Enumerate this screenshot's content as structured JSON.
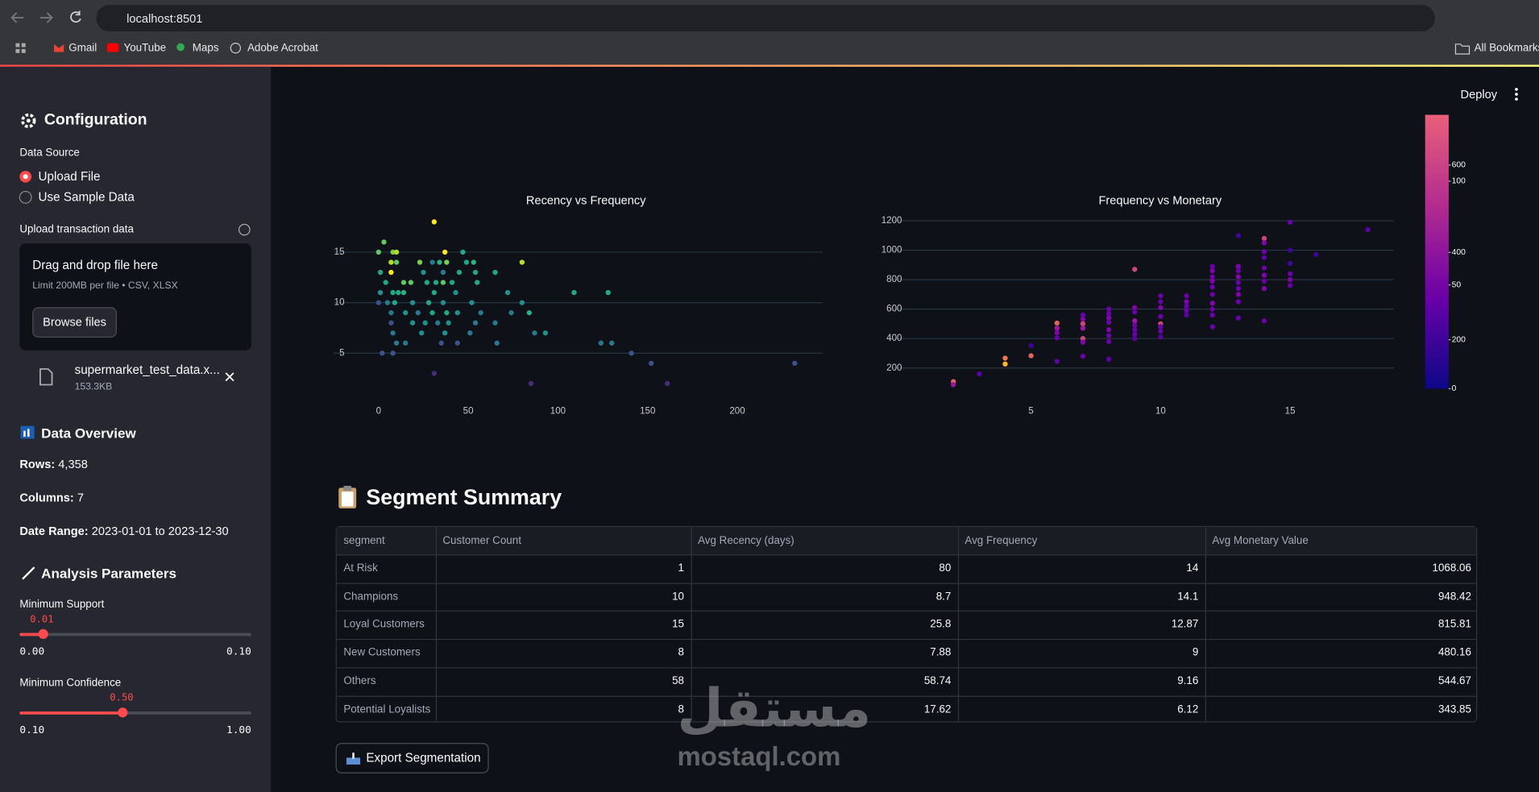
{
  "browser": {
    "url": "localhost:8501",
    "bookmarks": [
      "Gmail",
      "YouTube",
      "Maps",
      "Adobe Acrobat"
    ],
    "all_bookmarks": "All Bookmarks"
  },
  "sidebar": {
    "title": "Configuration",
    "data_source_label": "Data Source",
    "options": [
      "Upload File",
      "Use Sample Data"
    ],
    "upload_label": "Upload transaction data",
    "dropzone": {
      "title": "Drag and drop file here",
      "limit": "Limit 200MB per file • CSV, XLSX",
      "button": "Browse files"
    },
    "file": {
      "name": "supermarket_test_data.x...",
      "size": "153.3KB"
    },
    "overview_title": "Data Overview",
    "overview": [
      {
        "label": "Rows:",
        "value": "4,358"
      },
      {
        "label": "Columns:",
        "value": "7"
      },
      {
        "label": "Date Range:",
        "value": "2023-01-01 to 2023-12-30"
      }
    ],
    "params_title": "Analysis Parameters",
    "sliders": [
      {
        "label": "Minimum Support",
        "value": 0.01,
        "value_label": "0.01",
        "min": 0,
        "min_label": "0.00",
        "max": 0.1,
        "max_label": "0.10"
      },
      {
        "label": "Minimum Confidence",
        "value": 0.5,
        "value_label": "0.50",
        "min": 0.1,
        "min_label": "0.10",
        "max": 1,
        "max_label": "1.00"
      }
    ]
  },
  "header": {
    "deploy": "Deploy"
  },
  "chart_data": [
    {
      "type": "scatter",
      "title": "Recency vs Frequency",
      "grid": true,
      "xlim": [
        -25,
        247.5
      ],
      "ylim": [
        1.1,
        18.1
      ],
      "xticks": [
        0,
        50,
        100,
        150,
        200
      ],
      "yticks": [
        5,
        10,
        15
      ],
      "x": [
        31,
        3,
        0,
        8,
        10,
        37,
        47,
        7,
        10,
        23,
        30,
        34,
        38,
        49,
        53,
        80,
        65,
        1,
        7,
        25,
        36,
        45,
        54,
        4,
        14,
        18,
        27,
        32,
        36,
        41,
        55,
        1,
        8,
        11,
        14,
        31,
        43,
        72,
        109,
        128,
        0,
        5,
        9,
        19,
        28,
        36,
        52,
        80,
        7,
        15,
        22,
        30,
        38,
        44,
        57,
        74,
        84,
        7,
        19,
        26,
        33,
        39,
        54,
        65,
        8,
        24,
        37,
        51,
        87,
        93,
        10,
        15,
        35,
        44,
        66,
        124,
        130,
        2,
        8,
        141,
        152,
        232,
        31,
        85,
        161
      ],
      "values": [
        18,
        16,
        15,
        15,
        15,
        15,
        15,
        14,
        14,
        14,
        14,
        14,
        14,
        14,
        14,
        14,
        13,
        13,
        13,
        13,
        13,
        13,
        13,
        12,
        12,
        12,
        12,
        12,
        12,
        12,
        12,
        11,
        11,
        11,
        11,
        11,
        11,
        11,
        11,
        11,
        10,
        10,
        10,
        10,
        10,
        10,
        10,
        10,
        9,
        9,
        9,
        9,
        9,
        9,
        9,
        9,
        9,
        8,
        8,
        8,
        8,
        8,
        8,
        8,
        7,
        7,
        7,
        7,
        7,
        7,
        6,
        6,
        6,
        6,
        6,
        6,
        6,
        5,
        5,
        5,
        4,
        4,
        3,
        2,
        2
      ],
      "colors": [
        "#fde725",
        "#5ec962",
        "#5ec962",
        "#7ad151",
        "#b5de2b",
        "#fde725",
        "#22a884",
        "#b5de2b",
        "#5ec962",
        "#7ad151",
        "#2a788e",
        "#2ab07f",
        "#7ad151",
        "#22a884",
        "#2ab07f",
        "#b5de2b",
        "#22a884",
        "#22a884",
        "#fde725",
        "#21918c",
        "#2a788e",
        "#22a884",
        "#22a884",
        "#22a884",
        "#5ec962",
        "#5ec962",
        "#22a884",
        "#22a884",
        "#5ec962",
        "#22a884",
        "#22a884",
        "#21918c",
        "#22a884",
        "#22a884",
        "#2ab07f",
        "#22a884",
        "#21918c",
        "#21918c",
        "#22a884",
        "#22a884",
        "#3b528b",
        "#2a788e",
        "#22a884",
        "#21918c",
        "#22a884",
        "#21918c",
        "#21918c",
        "#21918c",
        "#2a788e",
        "#21918c",
        "#2a788e",
        "#22a884",
        "#22a884",
        "#21918c",
        "#2a788e",
        "#2a788e",
        "#2ab07f",
        "#3b528b",
        "#21918c",
        "#21918c",
        "#2a788e",
        "#21918c",
        "#2a788e",
        "#2a788e",
        "#2a788e",
        "#21918c",
        "#21918c",
        "#2a788e",
        "#2a788e",
        "#21918c",
        "#2a788e",
        "#2a788e",
        "#3b528b",
        "#3b528b",
        "#2a788e",
        "#2a788e",
        "#2a788e",
        "#3b528b",
        "#3b528b",
        "#3b528b",
        "#3b528b",
        "#3b528b",
        "#472d7b",
        "#472d7b",
        "#472d7b"
      ]
    },
    {
      "type": "scatter",
      "title": "Frequency vs Monetary",
      "grid": true,
      "xlim": [
        -0.4,
        19
      ],
      "ylim": [
        33,
        1233
      ],
      "xticks": [
        5,
        10,
        15
      ],
      "yticks": [
        200,
        400,
        600,
        800,
        1000,
        1200
      ],
      "x": [
        2,
        2,
        3,
        4,
        4,
        5,
        5,
        6,
        6,
        6,
        6,
        6,
        7,
        7,
        7,
        7,
        7,
        7,
        7,
        8,
        8,
        8,
        8,
        8,
        8,
        8,
        8,
        9,
        9,
        9,
        9,
        9,
        9,
        9,
        9,
        10,
        10,
        10,
        10,
        10,
        10,
        10,
        10,
        11,
        11,
        11,
        11,
        11,
        12,
        12,
        12,
        12,
        12,
        12,
        12,
        12,
        12,
        12,
        13,
        13,
        13,
        13,
        13,
        13,
        13,
        13,
        13,
        14,
        14,
        14,
        14,
        14,
        14,
        14,
        14,
        14,
        15,
        15,
        15,
        15,
        15,
        15,
        16,
        18
      ],
      "values": [
        107,
        87,
        160,
        267,
        227,
        353,
        283,
        505,
        470,
        440,
        405,
        245,
        560,
        530,
        500,
        470,
        400,
        375,
        280,
        600,
        570,
        540,
        510,
        460,
        420,
        380,
        260,
        870,
        610,
        580,
        520,
        490,
        460,
        430,
        400,
        690,
        650,
        610,
        550,
        500,
        480,
        450,
        410,
        690,
        650,
        620,
        590,
        560,
        890,
        860,
        820,
        790,
        750,
        700,
        640,
        600,
        560,
        480,
        1100,
        890,
        860,
        820,
        780,
        740,
        700,
        650,
        540,
        1080,
        1050,
        990,
        950,
        880,
        830,
        790,
        740,
        520,
        1190,
        1000,
        910,
        840,
        800,
        760,
        970,
        1140
      ],
      "colors": [
        "#e16462",
        "#9c179e",
        "#5c01a6",
        "#ed7953",
        "#fdb42f",
        "#3e049c",
        "#e16462",
        "#e16462",
        "#9c179e",
        "#7e03a8",
        "#6a00a8",
        "#5c01a6",
        "#6a00a8",
        "#7e03a8",
        "#cc4778",
        "#9c179e",
        "#cc4778",
        "#7e03a8",
        "#6a00a8",
        "#6a00a8",
        "#6a00a8",
        "#7e03a8",
        "#6a00a8",
        "#7e03a8",
        "#6a00a8",
        "#6a00a8",
        "#5c01a6",
        "#cc4778",
        "#7e03a8",
        "#6a00a8",
        "#9c179e",
        "#6a00a8",
        "#6a00a8",
        "#6a00a8",
        "#5c01a6",
        "#6a00a8",
        "#6a00a8",
        "#7e03a8",
        "#6a00a8",
        "#cc4778",
        "#6a00a8",
        "#6a00a8",
        "#5c01a6",
        "#6a00a8",
        "#7e03a8",
        "#6a00a8",
        "#6a00a8",
        "#5c01a6",
        "#6a00a8",
        "#7e03a8",
        "#6a00a8",
        "#7e03a8",
        "#6a00a8",
        "#6a00a8",
        "#7e03a8",
        "#6a00a8",
        "#6a00a8",
        "#6a00a8",
        "#3e049c",
        "#7e03a8",
        "#6a00a8",
        "#7e03a8",
        "#6a00a8",
        "#6a00a8",
        "#7e03a8",
        "#6a00a8",
        "#6a00a8",
        "#cc4778",
        "#7e03a8",
        "#6a00a8",
        "#5c01a6",
        "#6a00a8",
        "#7e03a8",
        "#6a00a8",
        "#7e03a8",
        "#6a00a8",
        "#6a00a8",
        "#3e049c",
        "#3e049c",
        "#6a00a8",
        "#7e03a8",
        "#6a00a8",
        "#3e049c",
        "#5c01a6"
      ],
      "colorscale": [
        [
          0,
          "#0d0887"
        ],
        [
          0.33,
          "#6a00a8"
        ],
        [
          0.66,
          "#b12a90"
        ],
        [
          1,
          "#e8607a"
        ]
      ],
      "colorbars": [
        {
          "range": [
            88,
            715
          ],
          "ticks": [
            200,
            400,
            600
          ]
        },
        {
          "range": [
            0,
            132
          ],
          "ticks": [
            0,
            50,
            100
          ]
        }
      ]
    }
  ],
  "summary": {
    "title": "Segment Summary",
    "columns": [
      "segment",
      "Customer Count",
      "Avg Recency (days)",
      "Avg Frequency",
      "Avg Monetary Value"
    ],
    "rows": [
      [
        "At Risk",
        1,
        80,
        14,
        1068.06
      ],
      [
        "Champions",
        10,
        8.7,
        14.1,
        948.42
      ],
      [
        "Loyal Customers",
        15,
        25.8,
        12.87,
        815.81
      ],
      [
        "New Customers",
        8,
        7.88,
        9,
        480.16
      ],
      [
        "Others",
        58,
        58.74,
        9.16,
        544.67
      ],
      [
        "Potential Loyalists",
        8,
        17.62,
        6.12,
        343.85
      ]
    ]
  },
  "export_button": "Export Segmentation",
  "watermark": {
    "arabic": "مستقل",
    "latin": "mostaql.com"
  }
}
